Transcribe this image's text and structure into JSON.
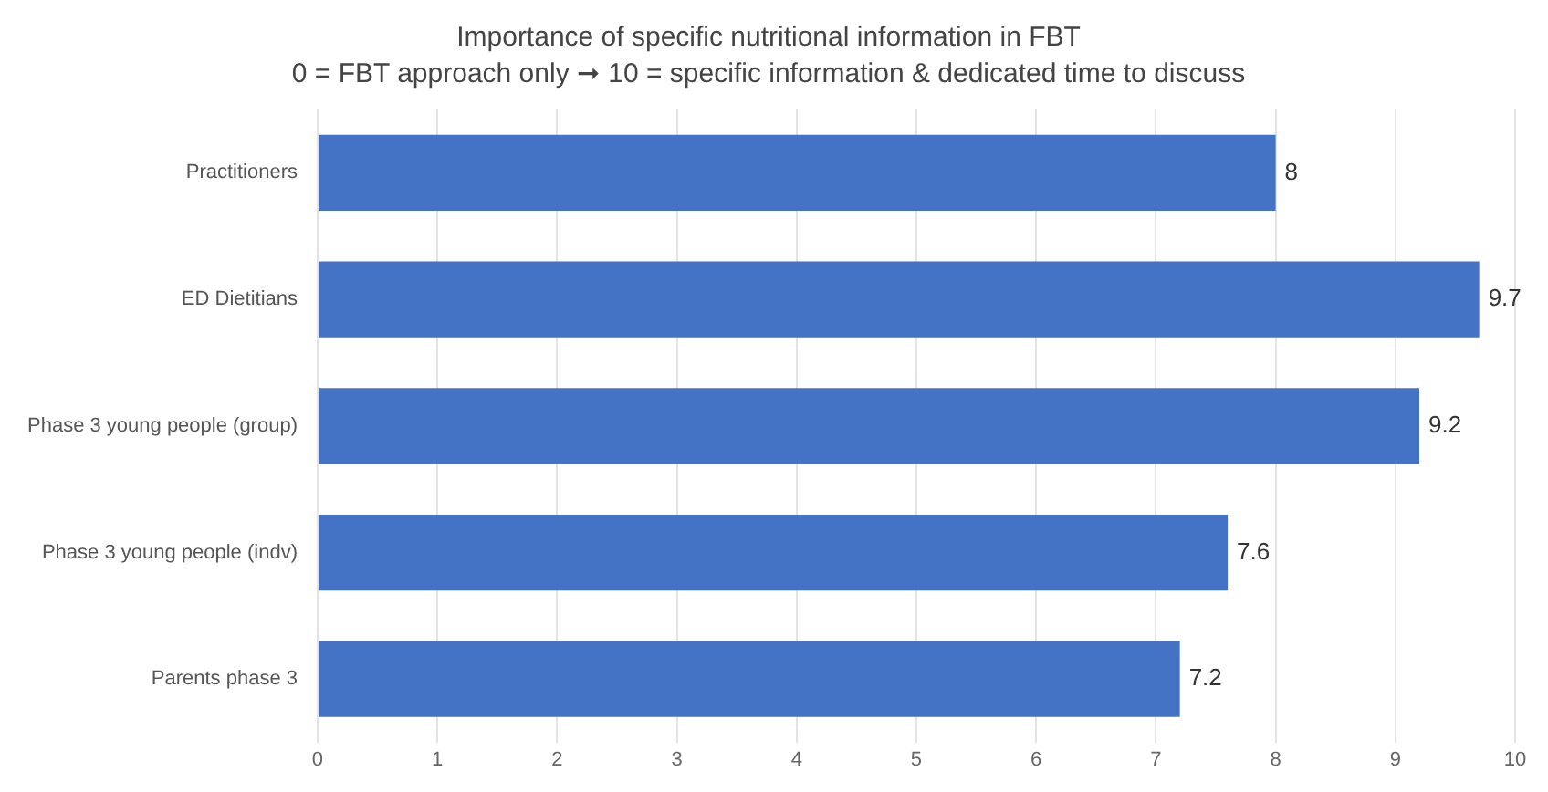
{
  "chart_data": {
    "type": "bar",
    "orientation": "horizontal",
    "title": "Importance of specific nutritional information in FBT",
    "subtitle": "0 = FBT approach only ➞ 10 = specific information & dedicated time to discuss",
    "categories": [
      "Practitioners",
      "ED Dietitians",
      "Phase 3 young people (group)",
      "Phase 3 young people (indv)",
      "Parents phase 3"
    ],
    "values": [
      8,
      9.7,
      9.2,
      7.6,
      7.2
    ],
    "color": "#4472c4",
    "xlim": [
      0,
      10
    ],
    "xticks": [
      0,
      1,
      2,
      3,
      4,
      5,
      6,
      7,
      8,
      9,
      10
    ],
    "grid": "x",
    "data_labels": true
  }
}
